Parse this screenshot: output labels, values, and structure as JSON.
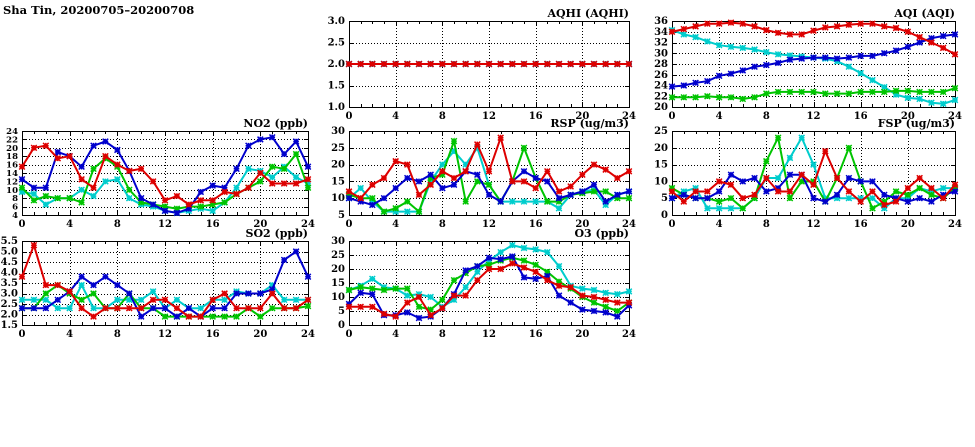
{
  "page_title": "Sha Tin, 20200705–20200708",
  "colors": {
    "red": "#dd0000",
    "blue": "#0000cd",
    "green": "#00c400",
    "cyan": "#00cdcd",
    "axis": "#000000",
    "background": "#ffffff"
  },
  "chart_data": [
    {
      "id": "no2",
      "type": "line",
      "title": "NO2 (ppb)",
      "xlim": [
        0,
        24
      ],
      "xticks": [
        0,
        4,
        8,
        12,
        16,
        20,
        24
      ],
      "x_start": 0,
      "x_step": 1,
      "ylim": [
        4,
        24
      ],
      "yticks": [
        4,
        6,
        8,
        10,
        12,
        14,
        16,
        18,
        20,
        22,
        24
      ],
      "ydecimals": 0,
      "grid": true,
      "legend": "none",
      "series": [
        {
          "name": "cyan",
          "color": "cyan",
          "values": [
            9.5,
            9,
            6.5,
            8,
            8,
            10,
            8.5,
            12,
            12.5,
            8,
            6.5,
            6,
            5,
            4.5,
            5,
            5.5,
            5,
            7,
            10.5,
            15,
            14.5,
            13,
            15.5,
            13,
            11.5
          ]
        },
        {
          "name": "green",
          "color": "green",
          "values": [
            10.5,
            7.5,
            8.5,
            8,
            8,
            7,
            15,
            17.5,
            15.5,
            10,
            7,
            6.5,
            6,
            5.5,
            6,
            6,
            6.5,
            7,
            9,
            10.5,
            12,
            15.5,
            15,
            18.5,
            10.5
          ]
        },
        {
          "name": "blue",
          "color": "blue",
          "values": [
            12.5,
            10.5,
            10.5,
            19,
            18,
            15.5,
            20.5,
            21.5,
            19.5,
            14.5,
            8,
            6.5,
            5,
            4.5,
            5.5,
            9.5,
            11,
            10.5,
            15,
            20.5,
            22,
            22.5,
            18.5,
            21.5,
            15.5
          ]
        },
        {
          "name": "red",
          "color": "red",
          "values": [
            15.5,
            20,
            20.5,
            17.5,
            18,
            12.5,
            10.5,
            18,
            16,
            14.5,
            15,
            12,
            7.5,
            8.5,
            6.5,
            7.5,
            7.5,
            9.5,
            9,
            10.5,
            14,
            11.5,
            11.5,
            11.5,
            12.5
          ]
        }
      ]
    },
    {
      "id": "so2",
      "type": "line",
      "title": "SO2 (ppb)",
      "xlim": [
        0,
        24
      ],
      "xticks": [
        0,
        4,
        8,
        12,
        16,
        20,
        24
      ],
      "x_start": 0,
      "x_step": 1,
      "ylim": [
        1.5,
        5.5
      ],
      "yticks": [
        1.5,
        2.0,
        2.5,
        3.0,
        3.5,
        4.0,
        4.5,
        5.0,
        5.5
      ],
      "ydecimals": 1,
      "grid": true,
      "legend": "none",
      "series": [
        {
          "name": "cyan",
          "color": "cyan",
          "values": [
            2.7,
            2.7,
            2.7,
            2.3,
            2.3,
            3.4,
            2.3,
            2.3,
            2.7,
            2.7,
            2.7,
            3.1,
            2.3,
            2.7,
            2.3,
            2.3,
            2.7,
            2.7,
            3.1,
            3.0,
            3.0,
            3.4,
            2.7,
            2.7,
            2.7
          ]
        },
        {
          "name": "green",
          "color": "green",
          "values": [
            2.3,
            2.3,
            3.0,
            3.4,
            3.0,
            2.7,
            3.0,
            2.3,
            2.3,
            3.0,
            2.3,
            2.3,
            1.9,
            1.9,
            1.9,
            1.9,
            1.9,
            1.9,
            1.9,
            2.3,
            1.9,
            2.3,
            2.3,
            2.3,
            2.4
          ]
        },
        {
          "name": "blue",
          "color": "blue",
          "values": [
            2.3,
            2.3,
            2.3,
            2.7,
            3.1,
            3.8,
            3.4,
            3.8,
            3.4,
            3.0,
            1.9,
            2.3,
            2.3,
            1.9,
            2.3,
            1.9,
            2.3,
            2.3,
            3.0,
            3.0,
            3.0,
            3.2,
            4.6,
            5.0,
            3.8
          ]
        },
        {
          "name": "red",
          "color": "red",
          "values": [
            3.8,
            5.3,
            3.4,
            3.4,
            3.1,
            2.3,
            1.9,
            2.3,
            2.3,
            2.3,
            2.3,
            2.7,
            2.7,
            2.3,
            1.9,
            1.9,
            2.7,
            3.0,
            2.3,
            2.3,
            2.3,
            3.0,
            2.3,
            2.3,
            2.7
          ]
        }
      ]
    },
    {
      "id": "aqhi",
      "type": "line",
      "title": "AQHI (AQHI)",
      "xlim": [
        0,
        24
      ],
      "xticks": [
        0,
        4,
        8,
        12,
        16,
        20,
        24
      ],
      "x_start": 0,
      "x_step": 1,
      "ylim": [
        1.0,
        3.0
      ],
      "yticks": [
        1.0,
        1.5,
        2.0,
        2.5,
        3.0
      ],
      "ydecimals": 1,
      "grid": true,
      "legend": "none",
      "series": [
        {
          "name": "cyan",
          "color": "cyan",
          "values": [
            2,
            2,
            2,
            2,
            2,
            2,
            2,
            2,
            2,
            2,
            2,
            2,
            2,
            2,
            2,
            2,
            2,
            2,
            2,
            2,
            2,
            2,
            2,
            2,
            2
          ]
        },
        {
          "name": "green",
          "color": "green",
          "values": [
            2,
            2,
            2,
            2,
            2,
            2,
            2,
            2,
            2,
            2,
            2,
            2,
            2,
            2,
            2,
            2,
            2,
            2,
            2,
            2,
            2,
            2,
            2,
            2,
            2
          ]
        },
        {
          "name": "blue",
          "color": "blue",
          "values": [
            2,
            2,
            2,
            2,
            2,
            2,
            2,
            2,
            2,
            2,
            2,
            2,
            2,
            2,
            2,
            2,
            2,
            2,
            2,
            2,
            2,
            2,
            2,
            2,
            2
          ]
        },
        {
          "name": "red",
          "color": "red",
          "values": [
            2,
            2,
            2,
            2,
            2,
            2,
            2,
            2,
            2,
            2,
            2,
            2,
            2,
            2,
            2,
            2,
            2,
            2,
            2,
            2,
            2,
            2,
            2,
            2,
            2
          ]
        }
      ]
    },
    {
      "id": "rsp",
      "type": "line",
      "title": "RSP (ug/m3)",
      "xlim": [
        0,
        24
      ],
      "xticks": [
        0,
        4,
        8,
        12,
        16,
        20,
        24
      ],
      "x_start": 0,
      "x_step": 1,
      "ylim": [
        5,
        30
      ],
      "yticks": [
        5,
        10,
        15,
        20,
        25,
        30
      ],
      "ydecimals": 0,
      "grid": true,
      "legend": "none",
      "series": [
        {
          "name": "cyan",
          "color": "cyan",
          "values": [
            10,
            13,
            9,
            6,
            6,
            6,
            6,
            15,
            20,
            24,
            20,
            25,
            14,
            9,
            9,
            9,
            9,
            9,
            7,
            11,
            12,
            12.5,
            8,
            11,
            12
          ]
        },
        {
          "name": "green",
          "color": "green",
          "values": [
            11,
            10,
            10,
            6,
            7,
            9,
            6,
            16,
            17,
            27,
            9,
            15,
            14,
            9,
            15,
            25,
            16,
            9,
            9,
            11,
            11.5,
            12,
            12,
            10,
            10
          ]
        },
        {
          "name": "blue",
          "color": "blue",
          "values": [
            10,
            9,
            8,
            10,
            13,
            16,
            15,
            17,
            13,
            14,
            18,
            17,
            11,
            9,
            15,
            18,
            16,
            15,
            10,
            11,
            12,
            14,
            9,
            11,
            12
          ]
        },
        {
          "name": "red",
          "color": "red",
          "values": [
            12,
            10,
            14,
            16,
            21,
            20,
            11,
            14,
            18,
            16,
            18,
            26,
            18,
            28,
            15,
            15,
            13,
            18,
            12,
            13.5,
            17,
            20,
            18.5,
            16,
            18
          ]
        }
      ]
    },
    {
      "id": "o3",
      "type": "line",
      "title": "O3 (ppb)",
      "xlim": [
        0,
        24
      ],
      "xticks": [
        0,
        4,
        8,
        12,
        16,
        20,
        24
      ],
      "x_start": 0,
      "x_step": 1,
      "ylim": [
        0,
        30
      ],
      "yticks": [
        0,
        5,
        10,
        15,
        20,
        25,
        30
      ],
      "ydecimals": 0,
      "grid": true,
      "legend": "none",
      "series": [
        {
          "name": "cyan",
          "color": "cyan",
          "values": [
            12.5,
            14,
            16.5,
            13.5,
            13,
            10.5,
            11,
            10,
            6.5,
            9,
            13.5,
            19,
            23,
            26,
            28.5,
            27.5,
            27,
            26,
            21,
            14,
            13,
            12.5,
            11.5,
            11,
            12
          ]
        },
        {
          "name": "green",
          "color": "green",
          "values": [
            12.5,
            13.5,
            13,
            12.5,
            13,
            13,
            6.5,
            5.5,
            9,
            16,
            18.5,
            21,
            21.5,
            23,
            24,
            23,
            21.5,
            19,
            15.5,
            13,
            10,
            8,
            6.5,
            5,
            8
          ]
        },
        {
          "name": "blue",
          "color": "blue",
          "values": [
            7.5,
            11.5,
            11,
            3.5,
            3.5,
            4.5,
            2.5,
            3,
            6,
            11,
            19.5,
            21,
            24,
            23.5,
            24.5,
            17,
            16.5,
            17.5,
            10.5,
            8,
            5.5,
            5,
            4.5,
            3,
            7
          ]
        },
        {
          "name": "red",
          "color": "red",
          "values": [
            6.5,
            6.5,
            6.5,
            4,
            3,
            8,
            10,
            3.5,
            6,
            10.5,
            10.5,
            16,
            20,
            20,
            22,
            20.5,
            19,
            16,
            14,
            13.5,
            10.5,
            10,
            9,
            8,
            8
          ]
        }
      ]
    },
    {
      "id": "aqi",
      "type": "line",
      "title": "AQI (AQI)",
      "xlim": [
        0,
        24
      ],
      "xticks": [
        0,
        4,
        8,
        12,
        16,
        20,
        24
      ],
      "x_start": 0,
      "x_step": 1,
      "ylim": [
        20,
        36
      ],
      "yticks": [
        20,
        22,
        24,
        26,
        28,
        30,
        32,
        34,
        36
      ],
      "ydecimals": 0,
      "grid": true,
      "legend": "none",
      "series": [
        {
          "name": "cyan",
          "color": "cyan",
          "values": [
            34.3,
            33.5,
            33,
            32.2,
            31.5,
            31.2,
            31,
            30.7,
            30.2,
            29.8,
            29.6,
            29.4,
            29.2,
            29,
            28.5,
            27.5,
            26.3,
            25,
            23.7,
            22.3,
            21.7,
            21.5,
            20.8,
            20.6,
            21.3
          ]
        },
        {
          "name": "green",
          "color": "green",
          "values": [
            21.8,
            21.8,
            21.8,
            22,
            21.8,
            21.8,
            21.5,
            21.8,
            22.5,
            22.8,
            22.8,
            22.8,
            22.8,
            22.5,
            22.5,
            22.5,
            22.8,
            22.8,
            22.8,
            23,
            23,
            22.8,
            22.8,
            22.8,
            23.5
          ]
        },
        {
          "name": "blue",
          "color": "blue",
          "values": [
            23.8,
            24,
            24.5,
            24.8,
            25.8,
            26.2,
            26.8,
            27.5,
            27.8,
            28.2,
            28.8,
            29,
            29.2,
            29.2,
            29,
            29.2,
            29.5,
            29.5,
            30,
            30.5,
            31.2,
            32,
            32.8,
            33.2,
            33.5
          ]
        },
        {
          "name": "red",
          "color": "red",
          "values": [
            34,
            34.5,
            35,
            35.5,
            35.5,
            35.7,
            35.5,
            35,
            34.3,
            33.8,
            33.5,
            33.5,
            34.2,
            34.8,
            35,
            35.3,
            35.5,
            35.5,
            35,
            34.7,
            34,
            33,
            32,
            31,
            29.8
          ]
        }
      ]
    },
    {
      "id": "fsp",
      "type": "line",
      "title": "FSP (ug/m3)",
      "xlim": [
        0,
        24
      ],
      "xticks": [
        0,
        4,
        8,
        12,
        16,
        20,
        24
      ],
      "x_start": 0,
      "x_step": 1,
      "ylim": [
        0,
        25
      ],
      "yticks": [
        0,
        5,
        10,
        15,
        20,
        25
      ],
      "ydecimals": 0,
      "grid": true,
      "legend": "none",
      "series": [
        {
          "name": "cyan",
          "color": "cyan",
          "values": [
            5,
            7,
            8,
            2,
            2,
            2,
            2,
            5,
            11,
            11,
            17,
            23,
            15,
            5,
            5,
            5,
            5,
            5,
            2,
            5,
            5,
            8,
            7,
            8,
            8
          ]
        },
        {
          "name": "green",
          "color": "green",
          "values": [
            8,
            6,
            5,
            5,
            4,
            5,
            2,
            5,
            16,
            23,
            5,
            10,
            10,
            4,
            11,
            20,
            10,
            2,
            4,
            7,
            6,
            8,
            6,
            5,
            8
          ]
        },
        {
          "name": "blue",
          "color": "blue",
          "values": [
            5,
            6,
            5,
            5,
            7,
            12,
            10,
            11,
            7,
            8,
            12,
            12,
            5,
            4,
            6,
            11,
            10,
            10,
            6,
            5,
            4,
            5,
            4,
            6,
            7
          ]
        },
        {
          "name": "red",
          "color": "red",
          "values": [
            7,
            4,
            7,
            7,
            10,
            9,
            5,
            6,
            11,
            7,
            7,
            12,
            9,
            19,
            11,
            7,
            4,
            7,
            3,
            4,
            8,
            11,
            8,
            5,
            9
          ]
        }
      ]
    }
  ]
}
